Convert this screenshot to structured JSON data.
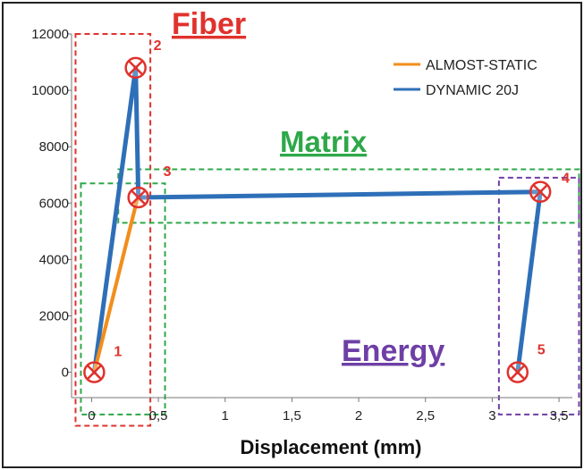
{
  "chart_data": {
    "type": "line",
    "title": "",
    "xlabel": "Displacement (mm)",
    "ylabel": "",
    "xlim": [
      -0.15,
      3.6
    ],
    "ylim": [
      -900,
      12000
    ],
    "x_ticks": [
      "0",
      "0,5",
      "1",
      "1,5",
      "2",
      "2,5",
      "3",
      "3,5"
    ],
    "x_tick_values": [
      0,
      0.5,
      1,
      1.5,
      2,
      2.5,
      3,
      3.5
    ],
    "y_ticks": [
      "0",
      "2000",
      "4000",
      "6000",
      "8000",
      "10000",
      "12000"
    ],
    "y_tick_values": [
      0,
      2000,
      4000,
      6000,
      8000,
      10000,
      12000
    ],
    "grid": false,
    "legend_position": "top-right",
    "series": [
      {
        "name": "ALMOST-STATIC",
        "color": "#f28e1c",
        "points": [
          [
            0.02,
            0
          ],
          [
            0.34,
            6100
          ],
          [
            0.36,
            6200
          ]
        ]
      },
      {
        "name": "DYNAMIC 20J",
        "color": "#2e6fb8",
        "points": [
          [
            0.02,
            0
          ],
          [
            0.33,
            10800
          ],
          [
            0.35,
            6200
          ],
          [
            3.36,
            6400
          ],
          [
            3.19,
            0
          ]
        ]
      }
    ],
    "markers": [
      {
        "label": "1",
        "x": 0.02,
        "y": 0
      },
      {
        "label": "2",
        "x": 0.33,
        "y": 10800
      },
      {
        "label": "3",
        "x": 0.35,
        "y": 6200
      },
      {
        "label": "4",
        "x": 3.36,
        "y": 6400
      },
      {
        "label": "5",
        "x": 3.19,
        "y": 0
      }
    ],
    "annotations": [
      {
        "text": "Fiber",
        "color": "#e0322d",
        "x_range": [
          -0.12,
          0.44
        ],
        "y_range": [
          -1900,
          12000
        ]
      },
      {
        "text": "Matrix",
        "color": "#2ea84a",
        "x_range": [
          -0.08,
          0.55
        ],
        "y_range": [
          -1500,
          6700
        ]
      },
      {
        "text": "Energy",
        "color": "#6e3fa6",
        "x_range": [
          3.05,
          3.65
        ],
        "y_range": [
          -1500,
          6900
        ]
      }
    ],
    "matrix_band": {
      "x_range": [
        0.2,
        3.65
      ],
      "y_range": [
        5300,
        7200
      ]
    }
  }
}
